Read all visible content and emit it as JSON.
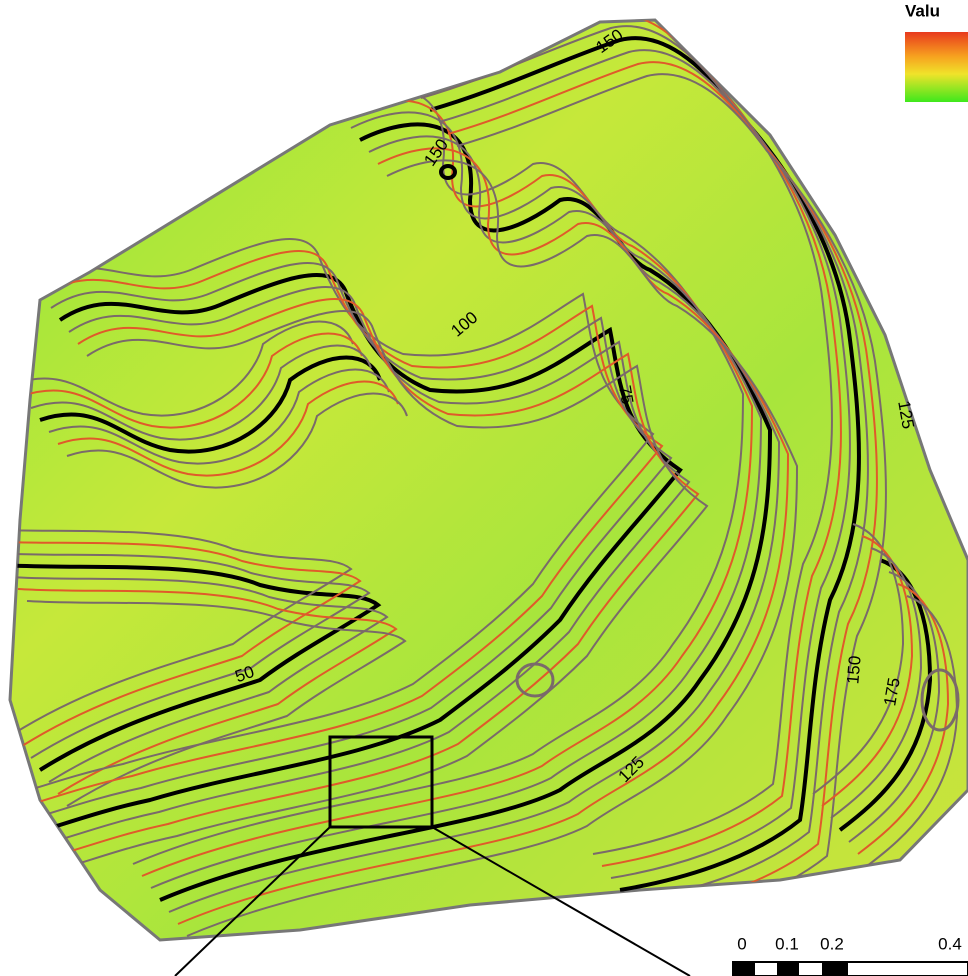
{
  "map": {
    "legend": {
      "title": "Valu"
    },
    "contour_labels": [
      "150",
      "150",
      "100",
      "75",
      "125",
      "50",
      "150",
      "175",
      "125"
    ],
    "scale_bar": {
      "labels": [
        "0",
        "0.1",
        "0.2",
        "0.4"
      ]
    }
  }
}
